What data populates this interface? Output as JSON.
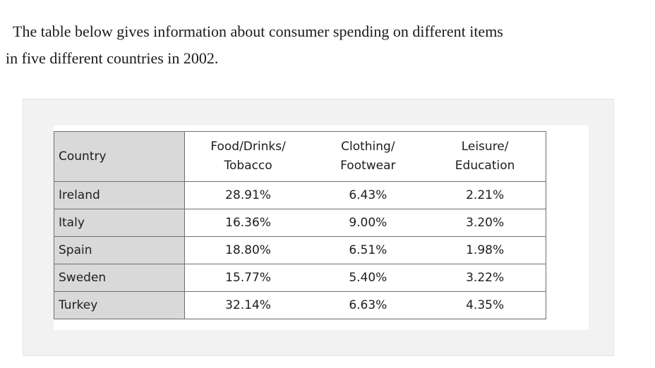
{
  "prompt": {
    "line1": "The table below gives information about consumer spending on different items",
    "line2": "in five different countries in 2002."
  },
  "chart_data": {
    "type": "table",
    "columns": [
      {
        "label_line1": "Country",
        "label_line2": ""
      },
      {
        "label_line1": "Food/Drinks/",
        "label_line2": "Tobacco"
      },
      {
        "label_line1": "Clothing/",
        "label_line2": "Footwear"
      },
      {
        "label_line1": "Leisure/",
        "label_line2": "Education"
      }
    ],
    "rows": [
      {
        "country": "Ireland",
        "food": "28.91%",
        "clothing": "6.43%",
        "leisure": "2.21%"
      },
      {
        "country": "Italy",
        "food": "16.36%",
        "clothing": "9.00%",
        "leisure": "3.20%"
      },
      {
        "country": "Spain",
        "food": "18.80%",
        "clothing": "6.51%",
        "leisure": "1.98%"
      },
      {
        "country": "Sweden",
        "food": "15.77%",
        "clothing": "5.40%",
        "leisure": "3.22%"
      },
      {
        "country": "Turkey",
        "food": "32.14%",
        "clothing": "6.63%",
        "leisure": "4.35%"
      }
    ]
  }
}
